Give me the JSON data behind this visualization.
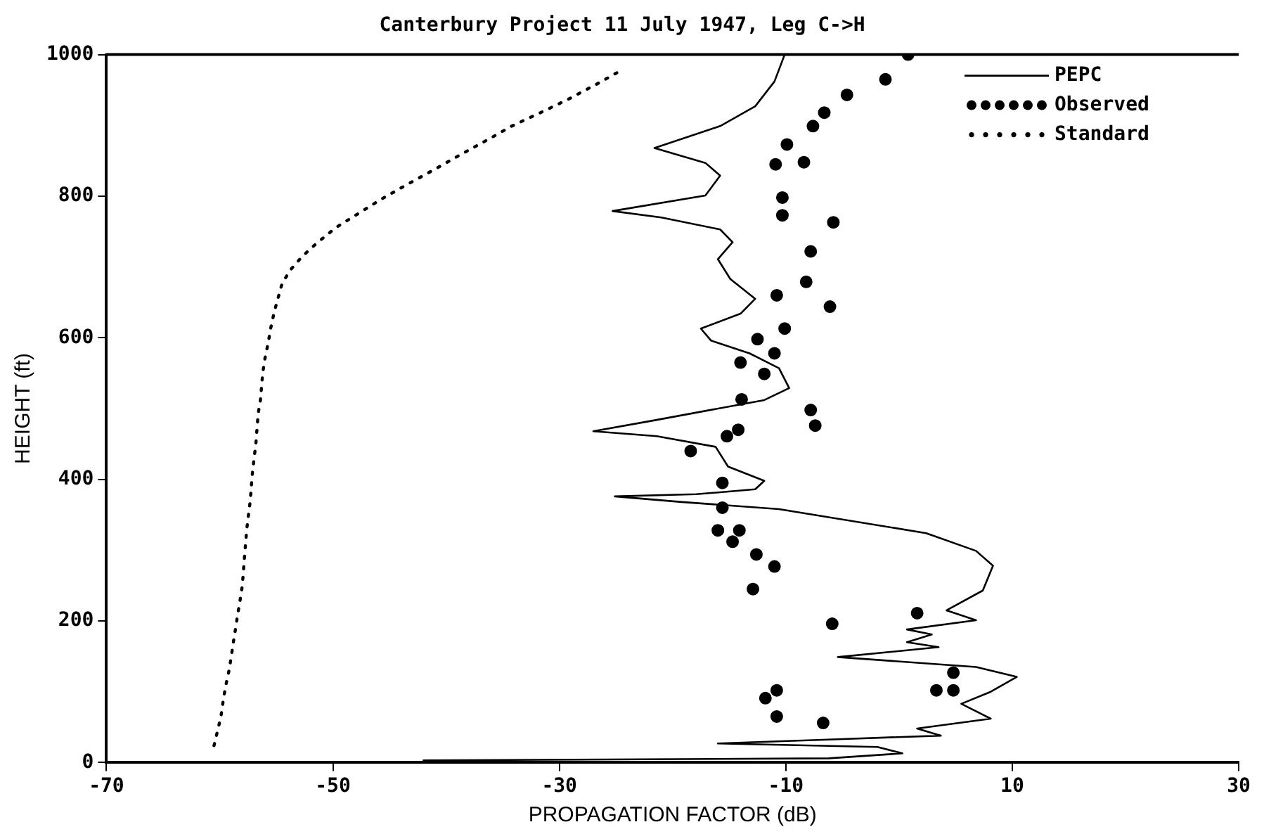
{
  "chart_data": {
    "type": "line",
    "title": "Canterbury Project 11 July 1947, Leg C->H",
    "xlabel": "PROPAGATION FACTOR (dB)",
    "ylabel": "HEIGHT (ft)",
    "xlim": [
      -70,
      30
    ],
    "xticks": [
      -70,
      -50,
      -30,
      -10,
      10,
      30
    ],
    "ylim": [
      0,
      1000
    ],
    "yticks": [
      0,
      200,
      400,
      600,
      800,
      1000
    ],
    "grid": false,
    "legend": "top right",
    "series": [
      {
        "name": "PEPC",
        "type": "line",
        "color": "#000000",
        "line_style": "solid",
        "marker": "none",
        "x": [
          -10.1,
          -11.0,
          -12.7,
          -15.8,
          -21.6,
          -17.1,
          -15.8,
          -17.1,
          -25.3,
          -21.0,
          -15.8,
          -14.7,
          -16.0,
          -14.9,
          -12.7,
          -14.0,
          -17.5,
          -16.6,
          -13.2,
          -10.6,
          -9.7,
          -11.9,
          -21.4,
          -27.0,
          -21.4,
          -16.2,
          -15.1,
          -11.9,
          -12.7,
          -17.9,
          -25.1,
          -19.2,
          -10.6,
          2.4,
          6.8,
          8.3,
          7.4,
          4.2,
          6.8,
          0.7,
          2.9,
          0.7,
          3.5,
          -5.4,
          6.8,
          10.4,
          8.1,
          5.5,
          8.1,
          1.6,
          3.7,
          -5.4,
          -16.0,
          -1.9,
          0.3,
          -6.2,
          -42.0
        ],
        "values": [
          1000,
          962,
          927,
          899,
          868,
          847,
          829,
          801,
          779,
          770,
          753,
          735,
          711,
          683,
          655,
          634,
          613,
          596,
          578,
          557,
          529,
          512,
          484,
          468,
          461,
          446,
          418,
          398,
          386,
          379,
          376,
          368,
          358,
          324,
          299,
          278,
          243,
          215,
          201,
          188,
          181,
          170,
          163,
          149,
          135,
          121,
          100,
          83,
          62,
          48,
          38,
          33,
          27,
          22,
          13,
          6,
          3
        ]
      },
      {
        "name": "Observed",
        "type": "scatter",
        "color": "#000000",
        "marker": "circle",
        "x": [
          0.8,
          -1.2,
          -4.6,
          -6.6,
          -7.6,
          -9.9,
          -10.9,
          -8.4,
          -10.3,
          -10.3,
          -5.8,
          -7.8,
          -8.2,
          -10.8,
          -6.1,
          -10.1,
          -12.5,
          -11.0,
          -14.0,
          -11.9,
          -13.9,
          -7.8,
          -7.4,
          -14.2,
          -15.2,
          -18.4,
          -15.6,
          -15.6,
          -16.0,
          -14.1,
          -14.7,
          -12.6,
          -11.0,
          -12.9,
          1.6,
          -5.9,
          4.8,
          3.3,
          4.8,
          -10.8,
          -11.8,
          -10.8,
          -6.7
        ],
        "values": [
          1000,
          965,
          943,
          918,
          899,
          873,
          845,
          848,
          798,
          773,
          763,
          722,
          679,
          660,
          644,
          613,
          598,
          578,
          565,
          549,
          513,
          498,
          476,
          470,
          461,
          440,
          395,
          360,
          328,
          328,
          312,
          294,
          277,
          245,
          211,
          196,
          127,
          102,
          102,
          102,
          91,
          65,
          56
        ]
      },
      {
        "name": "Standard",
        "type": "line",
        "color": "#000000",
        "line_style": "dotted",
        "marker": "none",
        "x": [
          -60.5,
          -59.9,
          -59.7,
          -59.5,
          -59.2,
          -59.0,
          -58.8,
          -58.6,
          -58.4,
          -58.2,
          -58.0,
          -57.8,
          -57.6,
          -57.3,
          -57.1,
          -56.8,
          -56.6,
          -56.4,
          -56.2,
          -56.0,
          -55.7,
          -55.5,
          -55.2,
          -54.9,
          -54.5,
          -53.8,
          -52.7,
          -51.4,
          -49.7,
          -47.9,
          -45.7,
          -43.5,
          -41.0,
          -38.8,
          -36.3,
          -34.2,
          -31.4,
          -29.2,
          -26.5,
          -24.4
        ],
        "values": [
          24,
          64,
          86,
          106,
          128,
          147,
          169,
          189,
          210,
          229,
          250,
          292,
          331,
          370,
          411,
          451,
          493,
          512,
          550,
          571,
          594,
          613,
          635,
          653,
          676,
          695,
          715,
          734,
          756,
          774,
          796,
          816,
          838,
          858,
          880,
          899,
          920,
          937,
          960,
          979
        ]
      }
    ]
  }
}
